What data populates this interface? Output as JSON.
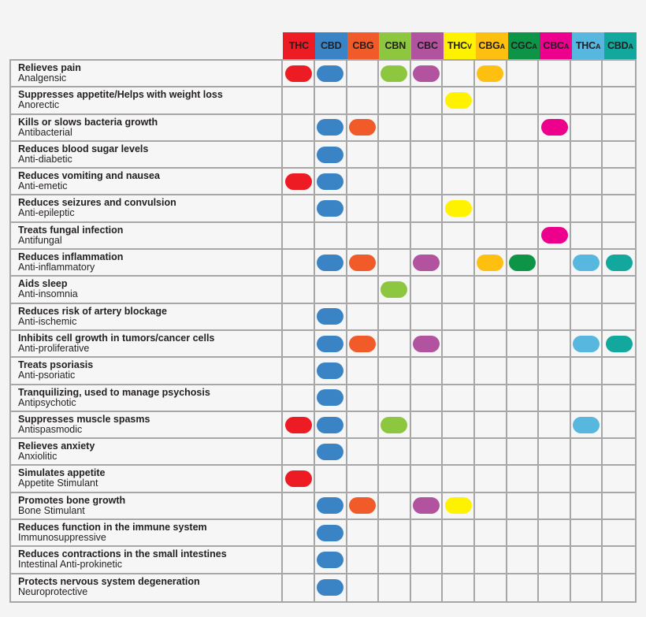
{
  "chart_data": {
    "type": "table",
    "title": "",
    "columns": [
      {
        "key": "THC",
        "label": "THC",
        "sub": "",
        "color": "#ed1c24"
      },
      {
        "key": "CBD",
        "label": "CBD",
        "sub": "",
        "color": "#3a84c6"
      },
      {
        "key": "CBG",
        "label": "CBG",
        "sub": "",
        "color": "#f15a29"
      },
      {
        "key": "CBN",
        "label": "CBN",
        "sub": "",
        "color": "#8dc63f"
      },
      {
        "key": "CBC",
        "label": "CBC",
        "sub": "",
        "color": "#b1539f"
      },
      {
        "key": "THCV",
        "label": "THC",
        "sub": "V",
        "color": "#fff200"
      },
      {
        "key": "CBGA",
        "label": "CBG",
        "sub": "A",
        "color": "#fdc010"
      },
      {
        "key": "CGCA",
        "label": "CGC",
        "sub": "A",
        "color": "#0e9447"
      },
      {
        "key": "CBCA",
        "label": "CBC",
        "sub": "A",
        "color": "#ec008c"
      },
      {
        "key": "THCA",
        "label": "THC",
        "sub": "A",
        "color": "#58b7df"
      },
      {
        "key": "CBDA",
        "label": "CBD",
        "sub": "A",
        "color": "#13a89e"
      }
    ],
    "rows": [
      {
        "title": "Relieves pain",
        "subtitle": "Analgensic",
        "marks": [
          1,
          1,
          0,
          1,
          1,
          0,
          1,
          0,
          0,
          0,
          0
        ]
      },
      {
        "title": "Suppresses appetite/Helps with weight loss",
        "subtitle": "Anorectic",
        "marks": [
          0,
          0,
          0,
          0,
          0,
          1,
          0,
          0,
          0,
          0,
          0
        ]
      },
      {
        "title": "Kills or slows bacteria growth",
        "subtitle": "Antibacterial",
        "marks": [
          0,
          1,
          1,
          0,
          0,
          0,
          0,
          0,
          1,
          0,
          0
        ]
      },
      {
        "title": "Reduces blood sugar levels",
        "subtitle": "Anti-diabetic",
        "marks": [
          0,
          1,
          0,
          0,
          0,
          0,
          0,
          0,
          0,
          0,
          0
        ]
      },
      {
        "title": "Reduces vomiting and nausea",
        "subtitle": "Anti-emetic",
        "marks": [
          1,
          1,
          0,
          0,
          0,
          0,
          0,
          0,
          0,
          0,
          0
        ]
      },
      {
        "title": "Reduces seizures and convulsion",
        "subtitle": "Anti-epileptic",
        "marks": [
          0,
          1,
          0,
          0,
          0,
          1,
          0,
          0,
          0,
          0,
          0
        ]
      },
      {
        "title": "Treats fungal infection",
        "subtitle": "Antifungal",
        "marks": [
          0,
          0,
          0,
          0,
          0,
          0,
          0,
          0,
          1,
          0,
          0
        ]
      },
      {
        "title": "Reduces inflammation",
        "subtitle": "Anti-inflammatory",
        "marks": [
          0,
          1,
          1,
          0,
          1,
          0,
          1,
          1,
          0,
          1,
          1
        ]
      },
      {
        "title": "Aids sleep",
        "subtitle": "Anti-insomnia",
        "marks": [
          0,
          0,
          0,
          1,
          0,
          0,
          0,
          0,
          0,
          0,
          0
        ]
      },
      {
        "title": "Reduces risk of artery blockage",
        "subtitle": "Anti-ischemic",
        "marks": [
          0,
          1,
          0,
          0,
          0,
          0,
          0,
          0,
          0,
          0,
          0
        ]
      },
      {
        "title": "Inhibits cell growth in tumors/cancer cells",
        "subtitle": "Anti-proliferative",
        "marks": [
          0,
          1,
          1,
          0,
          1,
          0,
          0,
          0,
          0,
          1,
          1
        ]
      },
      {
        "title": "Treats psoriasis",
        "subtitle": "Anti-psoriatic",
        "marks": [
          0,
          1,
          0,
          0,
          0,
          0,
          0,
          0,
          0,
          0,
          0
        ]
      },
      {
        "title": "Tranquilizing, used to manage psychosis",
        "subtitle": "Antipsychotic",
        "marks": [
          0,
          1,
          0,
          0,
          0,
          0,
          0,
          0,
          0,
          0,
          0
        ]
      },
      {
        "title": "Suppresses muscle spasms",
        "subtitle": "Antispasmodic",
        "marks": [
          1,
          1,
          0,
          1,
          0,
          0,
          0,
          0,
          0,
          1,
          0
        ]
      },
      {
        "title": "Relieves anxiety",
        "subtitle": "Anxiolitic",
        "marks": [
          0,
          1,
          0,
          0,
          0,
          0,
          0,
          0,
          0,
          0,
          0
        ]
      },
      {
        "title": "Simulates appetite",
        "subtitle": "Appetite Stimulant",
        "marks": [
          1,
          0,
          0,
          0,
          0,
          0,
          0,
          0,
          0,
          0,
          0
        ]
      },
      {
        "title": "Promotes bone growth",
        "subtitle": "Bone Stimulant",
        "marks": [
          0,
          1,
          1,
          0,
          1,
          1,
          0,
          0,
          0,
          0,
          0
        ]
      },
      {
        "title": "Reduces function in the immune system",
        "subtitle": "Immunosuppressive",
        "marks": [
          0,
          1,
          0,
          0,
          0,
          0,
          0,
          0,
          0,
          0,
          0
        ]
      },
      {
        "title": "Reduces contractions in the small intestines",
        "subtitle": "Intestinal Anti-prokinetic",
        "marks": [
          0,
          1,
          0,
          0,
          0,
          0,
          0,
          0,
          0,
          0,
          0
        ]
      },
      {
        "title": "Protects nervous system degeneration",
        "subtitle": "Neuroprotective",
        "marks": [
          0,
          1,
          0,
          0,
          0,
          0,
          0,
          0,
          0,
          0,
          0
        ]
      }
    ]
  }
}
